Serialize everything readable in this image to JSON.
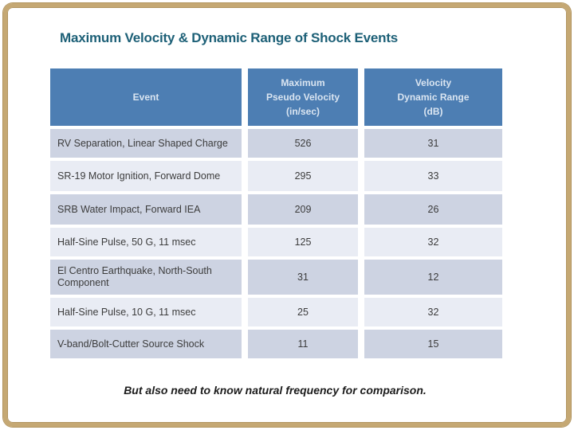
{
  "slide": {
    "title": "Maximum Velocity & Dynamic Range of Shock Events",
    "caption": "But also need to know natural frequency for comparison.",
    "colors": {
      "border_frame": "#C5A873",
      "title_text": "#1D6077",
      "table_header_bg": "#4D7EB3",
      "table_header_text": "#DAE5F1",
      "row_dark_bg": "#CDD3E2",
      "row_light_bg": "#E9ECF4",
      "cell_text": "#3C3C3C"
    }
  },
  "table": {
    "header": {
      "col1_lines": [
        "Event"
      ],
      "col2_lines": [
        "Maximum",
        "Pseudo Velocity",
        "(in/sec)"
      ],
      "col3_lines": [
        "Velocity",
        "Dynamic Range",
        "(dB)"
      ]
    }
  },
  "chart_data": {
    "type": "table",
    "title": "Maximum Velocity & Dynamic Range of Shock Events",
    "columns": [
      "Event",
      "Maximum Pseudo Velocity (in/sec)",
      "Velocity Dynamic Range (dB)"
    ],
    "rows": [
      [
        "RV Separation, Linear Shaped Charge",
        526,
        31
      ],
      [
        "SR-19 Motor Ignition, Forward Dome",
        295,
        33
      ],
      [
        "SRB Water Impact, Forward IEA",
        209,
        26
      ],
      [
        "Half-Sine Pulse, 50 G, 11 msec",
        125,
        32
      ],
      [
        "El Centro Earthquake, North-South Component",
        31,
        12
      ],
      [
        "Half-Sine Pulse, 10 G, 11 msec",
        25,
        32
      ],
      [
        "V-band/Bolt-Cutter Source Shock",
        11,
        15
      ]
    ]
  }
}
